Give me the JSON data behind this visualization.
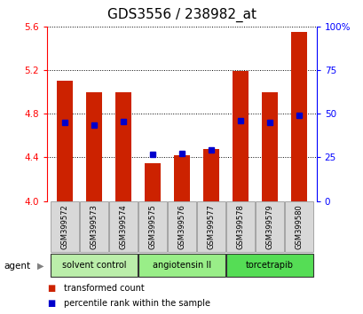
{
  "title": "GDS3556 / 238982_at",
  "samples": [
    "GSM399572",
    "GSM399573",
    "GSM399574",
    "GSM399575",
    "GSM399576",
    "GSM399577",
    "GSM399578",
    "GSM399579",
    "GSM399580"
  ],
  "bar_bottoms": [
    4.0,
    4.0,
    4.0,
    4.0,
    4.0,
    4.0,
    4.0,
    4.0,
    4.0
  ],
  "bar_tops": [
    5.1,
    5.0,
    5.0,
    4.35,
    4.42,
    4.48,
    5.19,
    5.0,
    5.55
  ],
  "percentile_values": [
    4.72,
    4.7,
    4.73,
    4.43,
    4.44,
    4.47,
    4.74,
    4.72,
    4.79
  ],
  "ylim_left": [
    4.0,
    5.6
  ],
  "ylim_right": [
    0,
    100
  ],
  "yticks_left": [
    4.0,
    4.4,
    4.8,
    5.2,
    5.6
  ],
  "yticks_right": [
    0,
    25,
    50,
    75,
    100
  ],
  "bar_color": "#cc2200",
  "percentile_color": "#0000cc",
  "groups": [
    {
      "label": "solvent control",
      "start": 0,
      "end": 3,
      "color": "#bbeeaa"
    },
    {
      "label": "angiotensin II",
      "start": 3,
      "end": 6,
      "color": "#99ee88"
    },
    {
      "label": "torcetrapib",
      "start": 6,
      "end": 9,
      "color": "#55dd55"
    }
  ],
  "agent_label": "agent",
  "legend_items": [
    {
      "label": "transformed count",
      "color": "#cc2200"
    },
    {
      "label": "percentile rank within the sample",
      "color": "#0000cc"
    }
  ],
  "bar_width": 0.55,
  "title_fontsize": 11,
  "tick_fontsize": 7.5,
  "sample_fontsize": 6,
  "group_fontsize": 7,
  "legend_fontsize": 7
}
